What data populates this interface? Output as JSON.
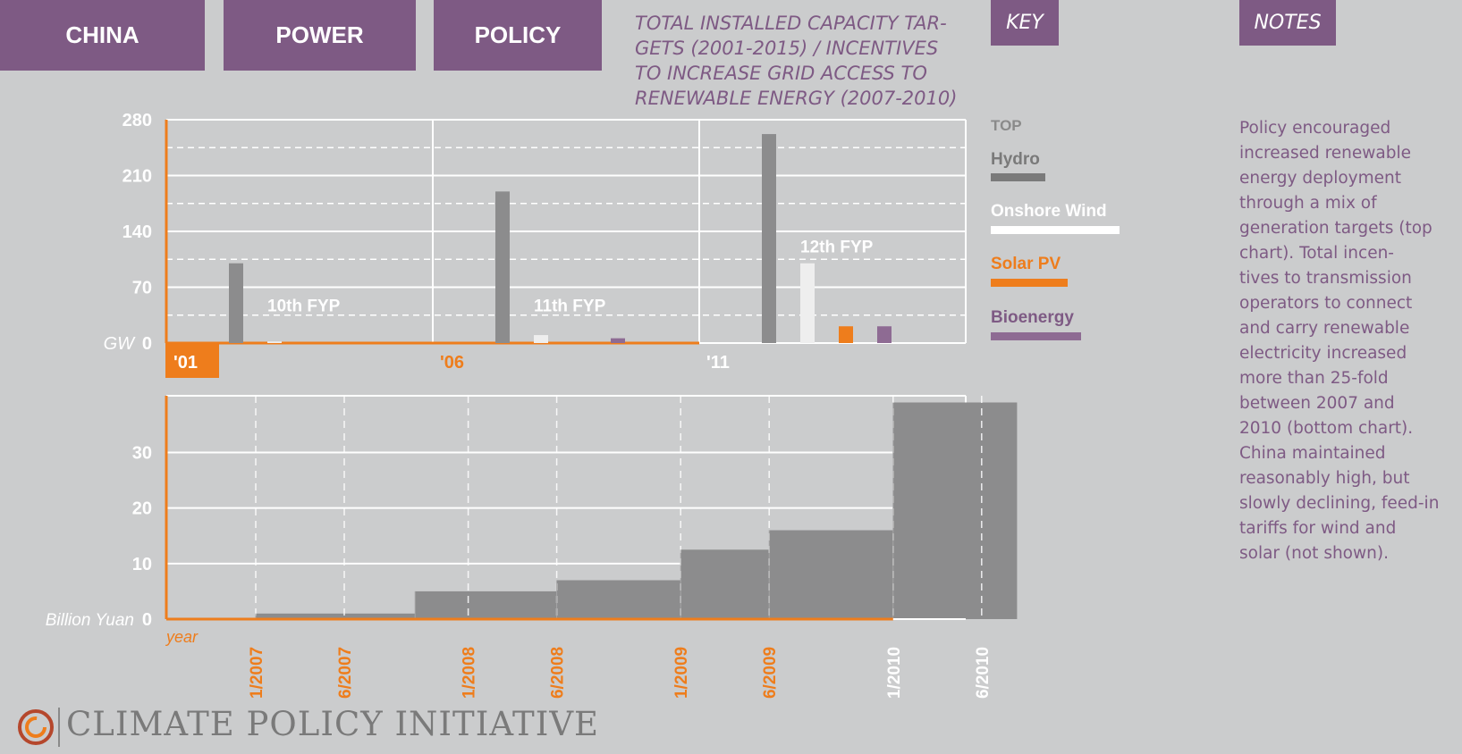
{
  "header": {
    "tabs": [
      "CHINA",
      "POWER",
      "POLICY"
    ],
    "subtitle": "TOTAL INSTALLED CAPACITY TAR-GETS (2001-2015) / INCENTIVES TO INCREASE GRID ACCESS TO RENEWABLE ENERGY (2007-2010)",
    "subtitle_lines": [
      "TOTAL INSTALLED CAPACITY TAR-",
      "GETS (2001-2015) / INCENTIVES",
      "TO INCREASE GRID ACCESS TO",
      "RENEWABLE ENERGY (2007-2010)"
    ],
    "key_label": "KEY",
    "notes_label": "NOTES"
  },
  "key": {
    "top": "TOP",
    "items": [
      {
        "label": "Hydro",
        "color": "#7a7a7a"
      },
      {
        "label": "Onshore Wind",
        "color": "#ffffff"
      },
      {
        "label": "Solar PV",
        "color": "#ee7d1c"
      },
      {
        "label": "Bioenergy",
        "color": "#8e6b93"
      }
    ]
  },
  "notes": {
    "text": "Policy encouraged increased renewable energy deployment through a mix of generation targets (top chart). Total incen-tives to transmission operators to connect and carry renewable electricity increased more than 25-fold between 2007 and 2010 (bottom chart). China maintained reasonably high, but slowly declining, feed-in tariffs for wind and solar (not shown).",
    "lines": [
      "Policy encouraged",
      "increased renewable",
      "energy deployment",
      "through a mix of",
      "generation targets (top",
      "chart). Total incen-",
      "tives to transmission",
      "operators to connect",
      "and carry renewable",
      "electricity increased",
      "more than 25-fold",
      "between 2007 and",
      "2010 (bottom chart).",
      "China maintained",
      "reasonably high, but",
      "slowly declining, feed-in",
      "tariffs for wind and",
      "solar (not shown)."
    ]
  },
  "footer": {
    "logo": "CLIMATE POLICY INITIATIVE"
  },
  "colors": {
    "purple": "#7e5a84",
    "orange": "#ee7d1c",
    "grey_bar": "#8c8c8d",
    "background": "#cbcccd"
  },
  "chart_data": [
    {
      "type": "bar",
      "ylabel": "GW",
      "ylim": [
        0,
        280
      ],
      "yticks": [
        0,
        70,
        140,
        210,
        280
      ],
      "period_labels": [
        "'01",
        "'06",
        "'11"
      ],
      "categories": [
        "10th FYP",
        "11th FYP",
        "12th FYP"
      ],
      "series": [
        {
          "name": "Hydro",
          "values": [
            100,
            190,
            262
          ]
        },
        {
          "name": "Onshore Wind",
          "values": [
            2,
            10,
            100
          ]
        },
        {
          "name": "Solar PV",
          "values": [
            0,
            0,
            21
          ]
        },
        {
          "name": "Bioenergy",
          "values": [
            0,
            6,
            21
          ]
        }
      ],
      "grid": true
    },
    {
      "type": "area",
      "ylabel": "Billion Yuan",
      "xlabel": "year",
      "yticks": [
        0,
        10,
        20,
        30
      ],
      "ylim": [
        0,
        39
      ],
      "x_ticks": [
        "1/2007",
        "6/2007",
        "1/2008",
        "6/2008",
        "1/2009",
        "6/2009",
        "1/2010",
        "6/2010"
      ],
      "steps": [
        {
          "start": "1/2007",
          "end": "10/2007",
          "value": 1
        },
        {
          "start": "10/2007",
          "end": "6/2008",
          "value": 5
        },
        {
          "start": "6/2008",
          "end": "1/2009",
          "value": 7
        },
        {
          "start": "1/2009",
          "end": "6/2009",
          "value": 12.5
        },
        {
          "start": "6/2009",
          "end": "1/2010",
          "value": 16
        },
        {
          "start": "1/2010",
          "end": "8/2010",
          "value": 39
        }
      ],
      "grid": true
    }
  ]
}
